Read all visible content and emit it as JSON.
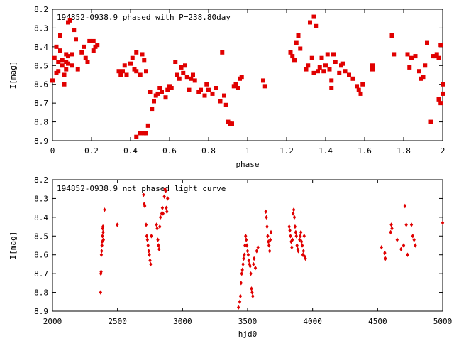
{
  "chart_data": [
    {
      "type": "scatter",
      "title": "194852-0938.9 phased with P=238.80day",
      "xlabel": "phase",
      "ylabel": "I[mag]",
      "xlim": [
        0,
        2
      ],
      "ylim": [
        8.2,
        8.9
      ],
      "y_inverted": true,
      "xticks": [
        "0",
        "0.2",
        "0.4",
        "0.6",
        "0.8",
        "1",
        "1.2",
        "1.4",
        "1.6",
        "1.8",
        "2"
      ],
      "yticks": [
        "8.2",
        "8.3",
        "8.4",
        "8.5",
        "8.6",
        "8.7",
        "8.8",
        "8.9"
      ],
      "marker": "square",
      "color": "#e00000",
      "points": [
        [
          0.01,
          8.46
        ],
        [
          0.0,
          8.58
        ],
        [
          0.02,
          8.54
        ],
        [
          0.03,
          8.53
        ],
        [
          0.02,
          8.4
        ],
        [
          0.03,
          8.48
        ],
        [
          0.04,
          8.42
        ],
        [
          0.04,
          8.34
        ],
        [
          0.05,
          8.5
        ],
        [
          0.05,
          8.47
        ],
        [
          0.06,
          8.55
        ],
        [
          0.06,
          8.6
        ],
        [
          0.07,
          8.48
        ],
        [
          0.07,
          8.44
        ],
        [
          0.07,
          8.52
        ],
        [
          0.08,
          8.49
        ],
        [
          0.08,
          8.45
        ],
        [
          0.08,
          8.27
        ],
        [
          0.09,
          8.26
        ],
        [
          0.1,
          8.44
        ],
        [
          0.1,
          8.5
        ],
        [
          0.11,
          8.31
        ],
        [
          0.12,
          8.36
        ],
        [
          0.13,
          8.52
        ],
        [
          0.15,
          8.43
        ],
        [
          0.16,
          8.4
        ],
        [
          0.17,
          8.46
        ],
        [
          0.18,
          8.48
        ],
        [
          0.19,
          8.37
        ],
        [
          0.21,
          8.42
        ],
        [
          0.21,
          8.37
        ],
        [
          0.22,
          8.4
        ],
        [
          0.23,
          8.39
        ],
        [
          0.34,
          8.53
        ],
        [
          0.35,
          8.55
        ],
        [
          0.36,
          8.53
        ],
        [
          0.37,
          8.5
        ],
        [
          0.38,
          8.55
        ],
        [
          0.4,
          8.49
        ],
        [
          0.41,
          8.46
        ],
        [
          0.42,
          8.52
        ],
        [
          0.43,
          8.53
        ],
        [
          0.43,
          8.43
        ],
        [
          0.45,
          8.55
        ],
        [
          0.46,
          8.44
        ],
        [
          0.47,
          8.47
        ],
        [
          0.48,
          8.53
        ],
        [
          0.45,
          8.86
        ],
        [
          0.47,
          8.86
        ],
        [
          0.48,
          8.86
        ],
        [
          0.49,
          8.82
        ],
        [
          0.43,
          8.88
        ],
        [
          0.5,
          8.64
        ],
        [
          0.51,
          8.73
        ],
        [
          0.52,
          8.69
        ],
        [
          0.53,
          8.66
        ],
        [
          0.54,
          8.65
        ],
        [
          0.55,
          8.62
        ],
        [
          0.56,
          8.64
        ],
        [
          0.58,
          8.67
        ],
        [
          0.59,
          8.63
        ],
        [
          0.6,
          8.61
        ],
        [
          0.61,
          8.62
        ],
        [
          0.63,
          8.48
        ],
        [
          0.64,
          8.55
        ],
        [
          0.65,
          8.57
        ],
        [
          0.66,
          8.51
        ],
        [
          0.67,
          8.54
        ],
        [
          0.68,
          8.5
        ],
        [
          0.69,
          8.56
        ],
        [
          0.7,
          8.63
        ],
        [
          0.71,
          8.57
        ],
        [
          0.72,
          8.55
        ],
        [
          0.73,
          8.58
        ],
        [
          0.75,
          8.64
        ],
        [
          0.76,
          8.63
        ],
        [
          0.78,
          8.66
        ],
        [
          0.79,
          8.6
        ],
        [
          0.8,
          8.63
        ],
        [
          0.82,
          8.65
        ],
        [
          0.84,
          8.62
        ],
        [
          0.86,
          8.69
        ],
        [
          0.87,
          8.43
        ],
        [
          0.88,
          8.66
        ],
        [
          0.89,
          8.71
        ],
        [
          0.9,
          8.8
        ],
        [
          0.91,
          8.81
        ],
        [
          0.92,
          8.81
        ],
        [
          0.93,
          8.61
        ],
        [
          0.94,
          8.6
        ],
        [
          0.95,
          8.62
        ],
        [
          0.96,
          8.57
        ],
        [
          0.97,
          8.56
        ],
        [
          1.08,
          8.58
        ],
        [
          1.09,
          8.61
        ],
        [
          1.22,
          8.43
        ],
        [
          1.23,
          8.45
        ],
        [
          1.24,
          8.47
        ],
        [
          1.25,
          8.38
        ],
        [
          1.26,
          8.34
        ],
        [
          1.27,
          8.41
        ],
        [
          1.3,
          8.52
        ],
        [
          1.31,
          8.5
        ],
        [
          1.32,
          8.27
        ],
        [
          1.33,
          8.46
        ],
        [
          1.34,
          8.54
        ],
        [
          1.34,
          8.24
        ],
        [
          1.35,
          8.29
        ],
        [
          1.36,
          8.53
        ],
        [
          1.37,
          8.51
        ],
        [
          1.38,
          8.46
        ],
        [
          1.39,
          8.53
        ],
        [
          1.4,
          8.5
        ],
        [
          1.41,
          8.44
        ],
        [
          1.42,
          8.52
        ],
        [
          1.43,
          8.58
        ],
        [
          1.43,
          8.62
        ],
        [
          1.44,
          8.44
        ],
        [
          1.45,
          8.48
        ],
        [
          1.47,
          8.54
        ],
        [
          1.48,
          8.5
        ],
        [
          1.49,
          8.49
        ],
        [
          1.5,
          8.53
        ],
        [
          1.52,
          8.55
        ],
        [
          1.54,
          8.57
        ],
        [
          1.56,
          8.61
        ],
        [
          1.57,
          8.63
        ],
        [
          1.58,
          8.65
        ],
        [
          1.59,
          8.6
        ],
        [
          1.64,
          8.5
        ],
        [
          1.64,
          8.52
        ],
        [
          1.74,
          8.34
        ],
        [
          1.75,
          8.44
        ],
        [
          1.82,
          8.44
        ],
        [
          1.83,
          8.51
        ],
        [
          1.84,
          8.46
        ],
        [
          1.86,
          8.45
        ],
        [
          1.88,
          8.53
        ],
        [
          1.89,
          8.57
        ],
        [
          1.9,
          8.56
        ],
        [
          1.91,
          8.5
        ],
        [
          1.92,
          8.38
        ],
        [
          1.94,
          8.8
        ],
        [
          1.95,
          8.45
        ],
        [
          1.96,
          8.45
        ],
        [
          1.97,
          8.44
        ],
        [
          1.98,
          8.46
        ],
        [
          1.99,
          8.39
        ],
        [
          1.98,
          8.68
        ],
        [
          1.99,
          8.7
        ],
        [
          2.0,
          8.6
        ],
        [
          2.0,
          8.65
        ]
      ]
    },
    {
      "type": "scatter",
      "title": "194852-0938.9 not phased light curve",
      "xlabel": "hjd0",
      "ylabel": "I[mag]",
      "xlim": [
        2000,
        5000
      ],
      "ylim": [
        8.2,
        8.9
      ],
      "y_inverted": true,
      "xticks": [
        "2000",
        "2500",
        "3000",
        "3500",
        "4000",
        "4500",
        "5000"
      ],
      "yticks": [
        "8.2",
        "8.3",
        "8.4",
        "8.5",
        "8.6",
        "8.7",
        "8.8",
        "8.9"
      ],
      "marker": "diamond",
      "color": "#e00000",
      "points": [
        [
          2370,
          8.8
        ],
        [
          2372,
          8.7
        ],
        [
          2374,
          8.69
        ],
        [
          2376,
          8.6
        ],
        [
          2378,
          8.58
        ],
        [
          2380,
          8.55
        ],
        [
          2382,
          8.53
        ],
        [
          2384,
          8.5
        ],
        [
          2386,
          8.46
        ],
        [
          2388,
          8.45
        ],
        [
          2390,
          8.48
        ],
        [
          2392,
          8.52
        ],
        [
          2400,
          8.36
        ],
        [
          2498,
          8.44
        ],
        [
          2700,
          8.28
        ],
        [
          2705,
          8.33
        ],
        [
          2710,
          8.34
        ],
        [
          2720,
          8.44
        ],
        [
          2725,
          8.5
        ],
        [
          2730,
          8.52
        ],
        [
          2735,
          8.55
        ],
        [
          2740,
          8.58
        ],
        [
          2745,
          8.6
        ],
        [
          2750,
          8.63
        ],
        [
          2755,
          8.65
        ],
        [
          2760,
          8.5
        ],
        [
          2800,
          8.44
        ],
        [
          2805,
          8.46
        ],
        [
          2810,
          8.52
        ],
        [
          2815,
          8.55
        ],
        [
          2820,
          8.57
        ],
        [
          2825,
          8.45
        ],
        [
          2830,
          8.4
        ],
        [
          2840,
          8.38
        ],
        [
          2845,
          8.35
        ],
        [
          2850,
          8.38
        ],
        [
          2860,
          8.29
        ],
        [
          2865,
          8.25
        ],
        [
          2870,
          8.26
        ],
        [
          2875,
          8.35
        ],
        [
          2880,
          8.37
        ],
        [
          2885,
          8.3
        ],
        [
          3430,
          8.88
        ],
        [
          3440,
          8.85
        ],
        [
          3445,
          8.82
        ],
        [
          3450,
          8.75
        ],
        [
          3455,
          8.7
        ],
        [
          3460,
          8.68
        ],
        [
          3465,
          8.65
        ],
        [
          3470,
          8.62
        ],
        [
          3475,
          8.6
        ],
        [
          3480,
          8.55
        ],
        [
          3485,
          8.5
        ],
        [
          3490,
          8.52
        ],
        [
          3495,
          8.55
        ],
        [
          3500,
          8.58
        ],
        [
          3505,
          8.6
        ],
        [
          3510,
          8.63
        ],
        [
          3515,
          8.65
        ],
        [
          3520,
          8.66
        ],
        [
          3525,
          8.7
        ],
        [
          3530,
          8.78
        ],
        [
          3535,
          8.8
        ],
        [
          3540,
          8.82
        ],
        [
          3545,
          8.65
        ],
        [
          3550,
          8.62
        ],
        [
          3560,
          8.67
        ],
        [
          3570,
          8.58
        ],
        [
          3580,
          8.56
        ],
        [
          3640,
          8.37
        ],
        [
          3645,
          8.4
        ],
        [
          3650,
          8.45
        ],
        [
          3655,
          8.5
        ],
        [
          3660,
          8.53
        ],
        [
          3665,
          8.55
        ],
        [
          3670,
          8.58
        ],
        [
          3675,
          8.52
        ],
        [
          3680,
          8.48
        ],
        [
          3820,
          8.45
        ],
        [
          3825,
          8.47
        ],
        [
          3830,
          8.5
        ],
        [
          3835,
          8.53
        ],
        [
          3840,
          8.56
        ],
        [
          3845,
          8.52
        ],
        [
          3850,
          8.38
        ],
        [
          3855,
          8.36
        ],
        [
          3860,
          8.4
        ],
        [
          3865,
          8.45
        ],
        [
          3870,
          8.48
        ],
        [
          3875,
          8.5
        ],
        [
          3880,
          8.55
        ],
        [
          3885,
          8.57
        ],
        [
          3890,
          8.58
        ],
        [
          3900,
          8.52
        ],
        [
          3905,
          8.5
        ],
        [
          3910,
          8.48
        ],
        [
          3915,
          8.53
        ],
        [
          3920,
          8.55
        ],
        [
          3925,
          8.6
        ],
        [
          3930,
          8.58
        ],
        [
          3935,
          8.5
        ],
        [
          3940,
          8.61
        ],
        [
          3945,
          8.62
        ],
        [
          4530,
          8.56
        ],
        [
          4555,
          8.59
        ],
        [
          4560,
          8.62
        ],
        [
          4600,
          8.48
        ],
        [
          4605,
          8.44
        ],
        [
          4610,
          8.46
        ],
        [
          4650,
          8.52
        ],
        [
          4680,
          8.57
        ],
        [
          4700,
          8.55
        ],
        [
          4710,
          8.34
        ],
        [
          4720,
          8.44
        ],
        [
          4730,
          8.6
        ],
        [
          4760,
          8.44
        ],
        [
          4770,
          8.5
        ],
        [
          4780,
          8.52
        ],
        [
          4790,
          8.55
        ],
        [
          5000,
          8.43
        ]
      ]
    }
  ]
}
